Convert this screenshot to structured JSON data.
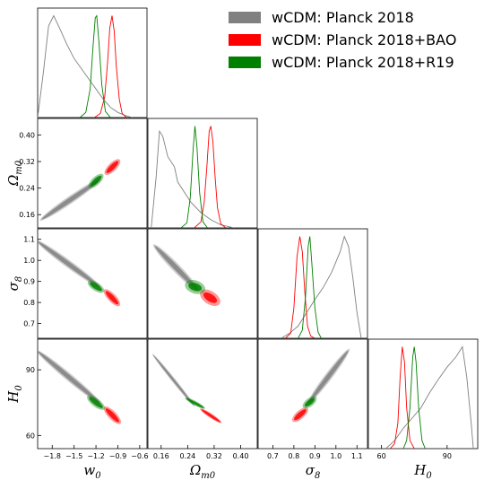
{
  "chart_data": {
    "type": "triangle",
    "parameters": [
      "w0",
      "Omega_m0",
      "sigma8",
      "H0"
    ],
    "axis_labels": {
      "w0": {
        "base": "w",
        "sub": "0"
      },
      "Omega_m0": {
        "base": "Ω",
        "sub": "m0"
      },
      "sigma8": {
        "base": "σ",
        "sub": "8"
      },
      "H0": {
        "base": "H",
        "sub": "0"
      }
    },
    "ranges": {
      "w0": [
        -2.0,
        -0.5
      ],
      "Omega_m0": [
        0.12,
        0.45
      ],
      "sigma8": [
        0.63,
        1.15
      ],
      "H0": [
        54,
        104
      ]
    },
    "ticks": {
      "w0": [
        {
          "v": -1.8,
          "t": "−1.8"
        },
        {
          "v": -1.5,
          "t": "−1.5"
        },
        {
          "v": -1.2,
          "t": "−1.2"
        },
        {
          "v": -0.9,
          "t": "−0.9"
        },
        {
          "v": -0.6,
          "t": "−0.6"
        }
      ],
      "Omega_m0": [
        {
          "v": 0.16,
          "t": "0.16"
        },
        {
          "v": 0.24,
          "t": "0.24"
        },
        {
          "v": 0.32,
          "t": "0.32"
        },
        {
          "v": 0.4,
          "t": "0.40"
        }
      ],
      "sigma8": [
        {
          "v": 0.7,
          "t": "0.7"
        },
        {
          "v": 0.8,
          "t": "0.8"
        },
        {
          "v": 0.9,
          "t": "0.9"
        },
        {
          "v": 1.0,
          "t": "1.0"
        },
        {
          "v": 1.1,
          "t": "1.1"
        }
      ],
      "H0": [
        {
          "v": 60,
          "t": "60"
        },
        {
          "v": 90,
          "t": "90"
        }
      ]
    },
    "y_ticks": {
      "Omega_m0": [
        {
          "v": 0.16,
          "t": "0.16"
        },
        {
          "v": 0.24,
          "t": "0.24"
        },
        {
          "v": 0.32,
          "t": "0.32"
        },
        {
          "v": 0.4,
          "t": "0.40"
        }
      ],
      "sigma8": [
        {
          "v": 0.7,
          "t": "0.7"
        },
        {
          "v": 0.8,
          "t": "0.8"
        },
        {
          "v": 0.9,
          "t": "0.9"
        },
        {
          "v": 1.0,
          "t": "1.0"
        },
        {
          "v": 1.1,
          "t": "1.1"
        }
      ],
      "H0": [
        {
          "v": 60,
          "t": "60"
        },
        {
          "v": 90,
          "t": "90"
        }
      ]
    },
    "series": [
      {
        "name": "wCDM: Planck 2018",
        "color": "#808080",
        "legend_color": "#808080",
        "mean": {
          "w0": -1.56,
          "Omega_m0": 0.205,
          "sigma8": 0.965,
          "H0": 86
        },
        "marginals": {
          "w0": [
            [
              -2.0,
              0.0
            ],
            [
              -1.92,
              0.45
            ],
            [
              -1.85,
              0.9
            ],
            [
              -1.78,
              1.0
            ],
            [
              -1.7,
              0.88
            ],
            [
              -1.6,
              0.72
            ],
            [
              -1.5,
              0.58
            ],
            [
              -1.4,
              0.48
            ],
            [
              -1.3,
              0.38
            ],
            [
              -1.2,
              0.28
            ],
            [
              -1.1,
              0.18
            ],
            [
              -1.0,
              0.1
            ],
            [
              -0.9,
              0.05
            ],
            [
              -0.8,
              0.02
            ],
            [
              -0.7,
              0.0
            ]
          ],
          "Omega_m0": [
            [
              0.13,
              0.0
            ],
            [
              0.145,
              0.5
            ],
            [
              0.155,
              0.95
            ],
            [
              0.165,
              0.9
            ],
            [
              0.18,
              0.7
            ],
            [
              0.2,
              0.6
            ],
            [
              0.21,
              0.45
            ],
            [
              0.23,
              0.35
            ],
            [
              0.25,
              0.25
            ],
            [
              0.28,
              0.15
            ],
            [
              0.31,
              0.08
            ],
            [
              0.34,
              0.03
            ],
            [
              0.38,
              0.0
            ]
          ],
          "sigma8": [
            [
              0.74,
              0.0
            ],
            [
              0.78,
              0.05
            ],
            [
              0.82,
              0.12
            ],
            [
              0.86,
              0.25
            ],
            [
              0.9,
              0.38
            ],
            [
              0.94,
              0.5
            ],
            [
              0.98,
              0.65
            ],
            [
              1.02,
              0.85
            ],
            [
              1.04,
              1.0
            ],
            [
              1.06,
              0.9
            ],
            [
              1.08,
              0.6
            ],
            [
              1.1,
              0.25
            ],
            [
              1.12,
              0.0
            ]
          ],
          "H0": [
            [
              62,
              0.0
            ],
            [
              66,
              0.08
            ],
            [
              70,
              0.2
            ],
            [
              74,
              0.3
            ],
            [
              78,
              0.4
            ],
            [
              82,
              0.55
            ],
            [
              86,
              0.68
            ],
            [
              90,
              0.8
            ],
            [
              94,
              0.9
            ],
            [
              97,
              1.0
            ],
            [
              99,
              0.7
            ],
            [
              101,
              0.25
            ],
            [
              102,
              0.0
            ]
          ]
        },
        "contours": {
          "Omega_m0|w0": {
            "a": [
              -1.95,
              0.145
            ],
            "b": [
              -1.15,
              0.265
            ],
            "w68": 0.02,
            "w95": 0.034
          },
          "sigma8|w0": {
            "a": [
              -2.0,
              1.09
            ],
            "b": [
              -1.15,
              0.875
            ],
            "w68": 0.02,
            "w95": 0.034
          },
          "sigma8|Omega_m0": {
            "a": [
              0.14,
              1.07
            ],
            "b": [
              0.27,
              0.86
            ],
            "w68": 0.022,
            "w95": 0.038
          },
          "H0|w0": {
            "a": [
              -2.0,
              98.5
            ],
            "b": [
              -1.15,
              75
            ],
            "w68": 0.02,
            "w95": 0.034
          },
          "H0|Omega_m0": {
            "a": [
              0.135,
              97
            ],
            "b": [
              0.26,
              73.5
            ],
            "w68": 0.01,
            "w95": 0.018
          },
          "H0|sigma8": {
            "a": [
              0.87,
              75
            ],
            "b": [
              1.06,
              99
            ],
            "w68": 0.02,
            "w95": 0.034
          }
        }
      },
      {
        "name": "wCDM: Planck 2018+BAO",
        "color": "#ff0000",
        "legend_color": "#ff0000",
        "mean": {
          "w0": -0.98,
          "Omega_m0": 0.307,
          "sigma8": 0.828,
          "H0": 69.5
        },
        "marginals": {
          "w0": [
            [
              -1.22,
              0.0
            ],
            [
              -1.14,
              0.04
            ],
            [
              -1.08,
              0.2
            ],
            [
              -1.04,
              0.55
            ],
            [
              -1.01,
              0.88
            ],
            [
              -0.98,
              1.0
            ],
            [
              -0.95,
              0.85
            ],
            [
              -0.92,
              0.5
            ],
            [
              -0.88,
              0.18
            ],
            [
              -0.84,
              0.04
            ],
            [
              -0.78,
              0.0
            ]
          ],
          "Omega_m0": [
            [
              0.26,
              0.0
            ],
            [
              0.28,
              0.06
            ],
            [
              0.29,
              0.25
            ],
            [
              0.298,
              0.6
            ],
            [
              0.305,
              0.95
            ],
            [
              0.31,
              1.0
            ],
            [
              0.316,
              0.85
            ],
            [
              0.323,
              0.5
            ],
            [
              0.33,
              0.2
            ],
            [
              0.34,
              0.04
            ],
            [
              0.355,
              0.0
            ]
          ],
          "sigma8": [
            [
              0.76,
              0.0
            ],
            [
              0.785,
              0.05
            ],
            [
              0.8,
              0.3
            ],
            [
              0.815,
              0.8
            ],
            [
              0.828,
              1.0
            ],
            [
              0.84,
              0.85
            ],
            [
              0.852,
              0.45
            ],
            [
              0.865,
              0.12
            ],
            [
              0.88,
              0.02
            ],
            [
              0.9,
              0.0
            ]
          ],
          "H0": [
            [
              64,
              0.0
            ],
            [
              66,
              0.05
            ],
            [
              67.5,
              0.25
            ],
            [
              68.5,
              0.7
            ],
            [
              69.5,
              1.0
            ],
            [
              70.5,
              0.85
            ],
            [
              71.5,
              0.4
            ],
            [
              73,
              0.08
            ],
            [
              75,
              0.0
            ]
          ]
        },
        "contours": {
          "Omega_m0|w0": {
            "a": [
              -1.06,
              0.285
            ],
            "b": [
              -0.89,
              0.322
            ],
            "w68": 0.022,
            "w95": 0.038
          },
          "sigma8|w0": {
            "a": [
              -1.07,
              0.855
            ],
            "b": [
              -0.89,
              0.79
            ],
            "w68": 0.022,
            "w95": 0.038
          },
          "sigma8|Omega_m0": {
            "a": [
              0.286,
              0.845
            ],
            "b": [
              0.33,
              0.8
            ],
            "w68": 0.035,
            "w95": 0.06
          },
          "H0|w0": {
            "a": [
              -1.07,
              72.5
            ],
            "b": [
              -0.88,
              66
            ],
            "w68": 0.022,
            "w95": 0.038
          },
          "H0|Omega_m0": {
            "a": [
              0.28,
              72
            ],
            "b": [
              0.34,
              66
            ],
            "w68": 0.012,
            "w95": 0.02
          },
          "H0|sigma8": {
            "a": [
              0.8,
              67
            ],
            "b": [
              0.86,
              72
            ],
            "w68": 0.022,
            "w95": 0.038
          }
        }
      },
      {
        "name": "wCDM: Planck 2018+R19",
        "color": "#008000",
        "legend_color": "#008000",
        "mean": {
          "w0": -1.2,
          "Omega_m0": 0.262,
          "sigma8": 0.875,
          "H0": 75
        },
        "marginals": {
          "w0": [
            [
              -1.42,
              0.0
            ],
            [
              -1.34,
              0.05
            ],
            [
              -1.28,
              0.28
            ],
            [
              -1.24,
              0.7
            ],
            [
              -1.21,
              0.98
            ],
            [
              -1.19,
              1.0
            ],
            [
              -1.16,
              0.75
            ],
            [
              -1.12,
              0.32
            ],
            [
              -1.07,
              0.06
            ],
            [
              -1.0,
              0.0
            ]
          ],
          "Omega_m0": [
            [
              0.22,
              0.0
            ],
            [
              0.238,
              0.05
            ],
            [
              0.248,
              0.3
            ],
            [
              0.256,
              0.75
            ],
            [
              0.262,
              1.0
            ],
            [
              0.268,
              0.8
            ],
            [
              0.276,
              0.35
            ],
            [
              0.286,
              0.06
            ],
            [
              0.3,
              0.0
            ]
          ],
          "sigma8": [
            [
              0.82,
              0.0
            ],
            [
              0.84,
              0.08
            ],
            [
              0.855,
              0.4
            ],
            [
              0.868,
              0.9
            ],
            [
              0.876,
              1.0
            ],
            [
              0.885,
              0.75
            ],
            [
              0.9,
              0.3
            ],
            [
              0.915,
              0.06
            ],
            [
              0.93,
              0.0
            ]
          ],
          "H0": [
            [
              70,
              0.0
            ],
            [
              71.5,
              0.08
            ],
            [
              73,
              0.4
            ],
            [
              74.3,
              0.9
            ],
            [
              75,
              1.0
            ],
            [
              75.8,
              0.85
            ],
            [
              77,
              0.4
            ],
            [
              78.5,
              0.08
            ],
            [
              80,
              0.0
            ]
          ]
        },
        "contours": {
          "Omega_m0|w0": {
            "a": [
              -1.28,
              0.245
            ],
            "b": [
              -1.12,
              0.278
            ],
            "w68": 0.022,
            "w95": 0.038
          },
          "sigma8|w0": {
            "a": [
              -1.29,
              0.895
            ],
            "b": [
              -1.11,
              0.855
            ],
            "w68": 0.022,
            "w95": 0.038
          },
          "sigma8|Omega_m0": {
            "a": [
              0.24,
              0.885
            ],
            "b": [
              0.285,
              0.862
            ],
            "w68": 0.035,
            "w95": 0.06
          },
          "H0|w0": {
            "a": [
              -1.3,
              77.5
            ],
            "b": [
              -1.1,
              72.5
            ],
            "w68": 0.022,
            "w95": 0.038
          },
          "H0|Omega_m0": {
            "a": [
              0.235,
              77
            ],
            "b": [
              0.29,
              72.5
            ],
            "w68": 0.012,
            "w95": 0.02
          },
          "H0|sigma8": {
            "a": [
              0.85,
              73.2
            ],
            "b": [
              0.9,
              77
            ],
            "w68": 0.022,
            "w95": 0.038
          }
        }
      }
    ],
    "legend": {
      "placement": "top-right"
    }
  }
}
